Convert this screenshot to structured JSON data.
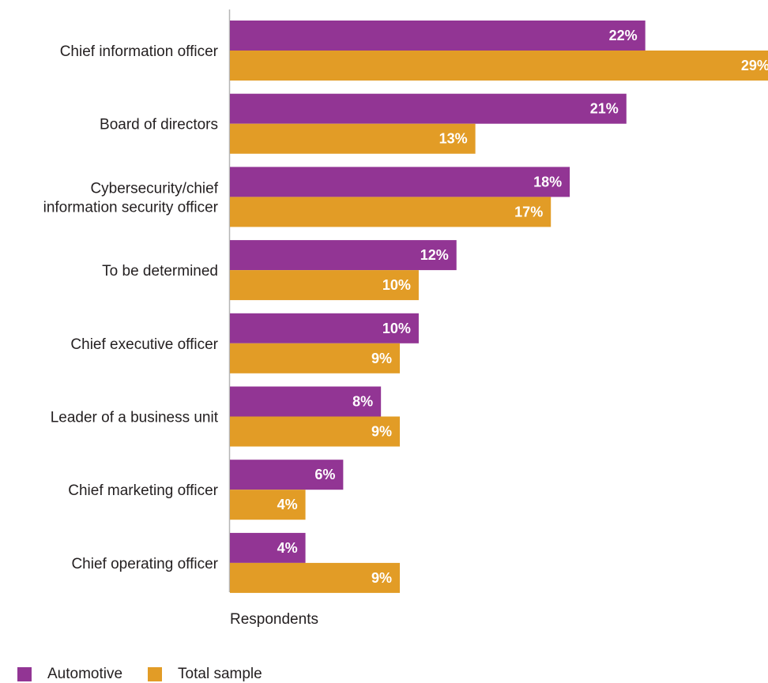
{
  "colors": {
    "automotive": "#923594",
    "total": "#e29c26",
    "axis": "#b5b5b5"
  },
  "chart_data": {
    "type": "bar",
    "orientation": "horizontal",
    "categories": [
      [
        "Chief information officer"
      ],
      [
        "Board of directors"
      ],
      [
        "Cybersecurity/chief",
        "information security officer"
      ],
      [
        "To be determined"
      ],
      [
        "Chief executive officer"
      ],
      [
        "Leader of a business unit"
      ],
      [
        "Chief marketing officer"
      ],
      [
        "Chief operating officer"
      ]
    ],
    "series": [
      {
        "name": "Automotive",
        "values": [
          22,
          21,
          18,
          12,
          10,
          8,
          6,
          4
        ]
      },
      {
        "name": "Total sample",
        "values": [
          29,
          13,
          17,
          10,
          9,
          9,
          4,
          9
        ]
      }
    ],
    "value_suffix": "%",
    "xlabel": "Respondents",
    "xlim": [
      0,
      28.5
    ],
    "grid": false,
    "legend_position": "bottom-left"
  }
}
